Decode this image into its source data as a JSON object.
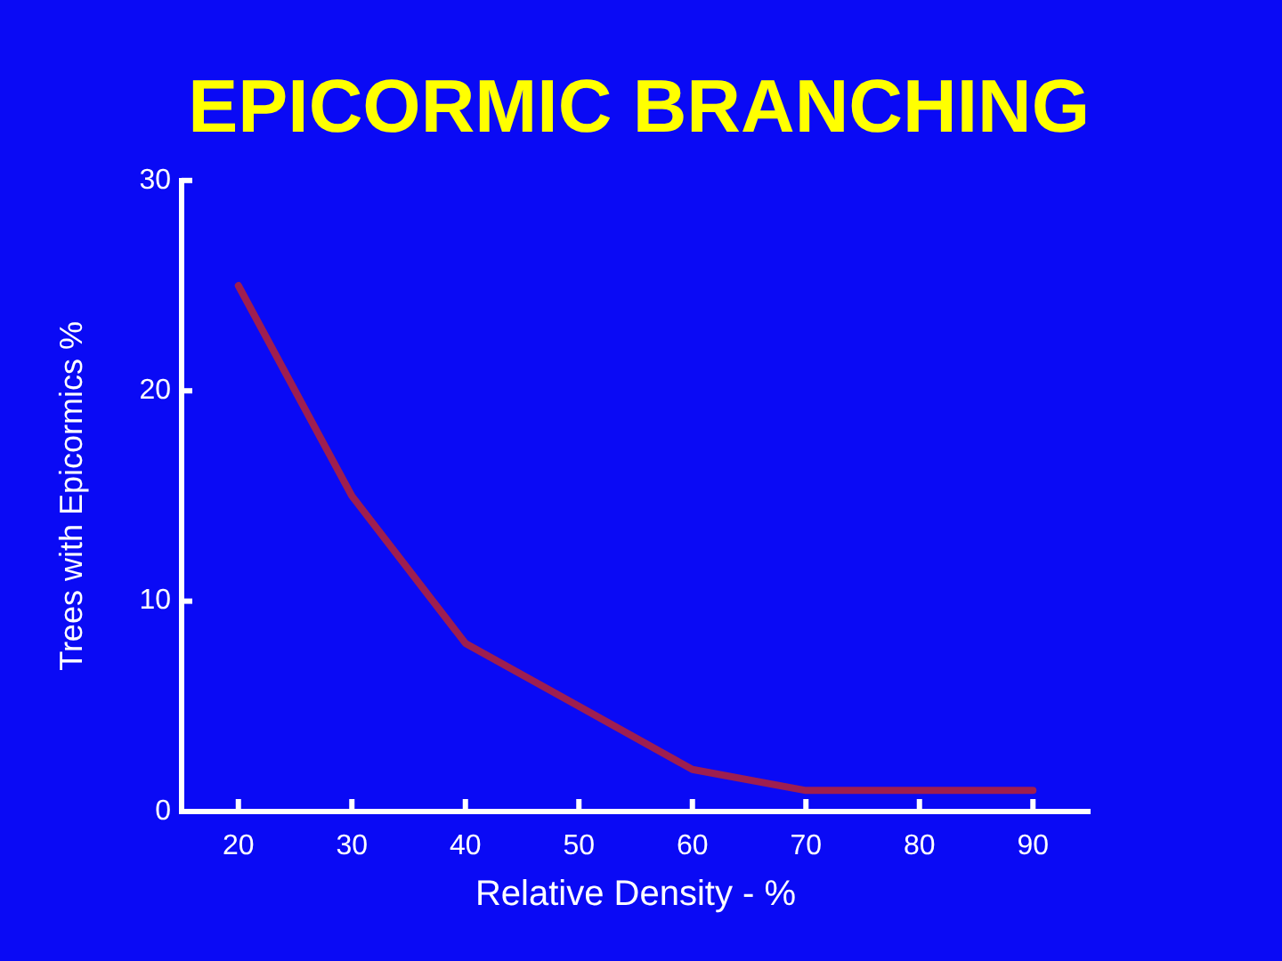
{
  "chart_data": {
    "type": "line",
    "title": "EPICORMIC BRANCHING",
    "xlabel": "Relative Density - %",
    "ylabel": "Trees with Epicormics %",
    "x": [
      20,
      30,
      40,
      50,
      60,
      70,
      80,
      90
    ],
    "series": [
      {
        "color": "#9e1e50",
        "values": [
          25,
          15,
          8,
          5,
          2,
          1,
          1,
          1
        ]
      }
    ],
    "xlim": [
      15,
      95
    ],
    "xticks": [
      20,
      30,
      40,
      50,
      60,
      70,
      80,
      90
    ],
    "ylim": [
      0,
      30
    ],
    "yticks": [
      0,
      10,
      20,
      30
    ],
    "grid": false,
    "legend": false,
    "marker": "none",
    "line_style": "solid"
  }
}
